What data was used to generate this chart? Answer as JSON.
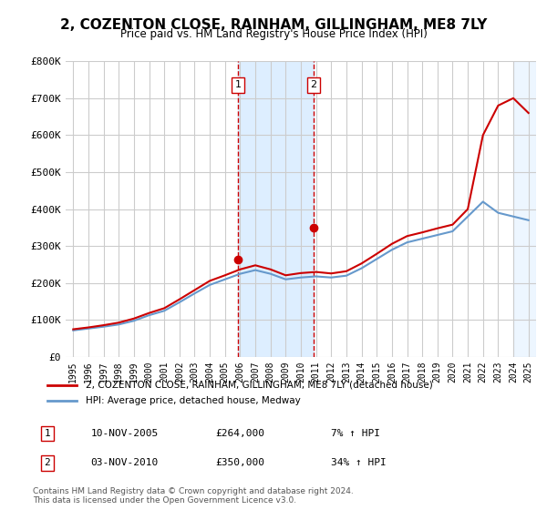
{
  "title": "2, COZENTON CLOSE, RAINHAM, GILLINGHAM, ME8 7LY",
  "subtitle": "Price paid vs. HM Land Registry's House Price Index (HPI)",
  "legend_line1": "2, COZENTON CLOSE, RAINHAM, GILLINGHAM, ME8 7LY (detached house)",
  "legend_line2": "HPI: Average price, detached house, Medway",
  "transactions": [
    {
      "id": 1,
      "date": "10-NOV-2005",
      "price": 264000,
      "pct": "7%",
      "dir": "↑"
    },
    {
      "id": 2,
      "date": "03-NOV-2010",
      "price": 350000,
      "pct": "34%",
      "dir": "↑"
    }
  ],
  "transaction_years": [
    2005.87,
    2010.84
  ],
  "transaction_prices": [
    264000,
    350000
  ],
  "footnote": "Contains HM Land Registry data © Crown copyright and database right 2024.\nThis data is licensed under the Open Government Licence v3.0.",
  "ylim": [
    0,
    800000
  ],
  "yticks": [
    0,
    100000,
    200000,
    300000,
    400000,
    500000,
    600000,
    700000,
    800000
  ],
  "ytick_labels": [
    "£0",
    "£100K",
    "£200K",
    "£300K",
    "£400K",
    "£500K",
    "£600K",
    "£700K",
    "£800K"
  ],
  "red_color": "#cc0000",
  "blue_color": "#6699cc",
  "shade_color": "#ddeeff",
  "background_color": "#ffffff",
  "grid_color": "#cccccc",
  "hpi_years": [
    1995,
    1996,
    1997,
    1998,
    1999,
    2000,
    2001,
    2002,
    2003,
    2004,
    2005,
    2006,
    2007,
    2008,
    2009,
    2010,
    2011,
    2012,
    2013,
    2014,
    2015,
    2016,
    2017,
    2018,
    2019,
    2020,
    2021,
    2022,
    2023,
    2024,
    2025
  ],
  "hpi_values": [
    72000,
    77000,
    82000,
    88000,
    98000,
    113000,
    125000,
    148000,
    172000,
    195000,
    210000,
    225000,
    235000,
    225000,
    210000,
    215000,
    218000,
    215000,
    220000,
    240000,
    265000,
    290000,
    310000,
    320000,
    330000,
    340000,
    380000,
    420000,
    390000,
    380000,
    370000
  ],
  "price_years": [
    1995,
    1996,
    1997,
    1998,
    1999,
    2000,
    2001,
    2002,
    2003,
    2004,
    2005,
    2006,
    2007,
    2008,
    2009,
    2010,
    2011,
    2012,
    2013,
    2014,
    2015,
    2016,
    2017,
    2018,
    2019,
    2020,
    2021,
    2022,
    2023,
    2024,
    2025
  ],
  "price_values": [
    75000,
    80000,
    86000,
    93000,
    104000,
    119000,
    132000,
    156000,
    181000,
    206000,
    221000,
    237000,
    248000,
    237000,
    221000,
    227000,
    230000,
    226000,
    232000,
    253000,
    279000,
    306000,
    327000,
    337000,
    348000,
    358000,
    400000,
    600000,
    680000,
    700000,
    660000
  ],
  "xlim_min": 1994.5,
  "xlim_max": 2025.5,
  "xticks": [
    1995,
    1996,
    1997,
    1998,
    1999,
    2000,
    2001,
    2002,
    2003,
    2004,
    2005,
    2006,
    2007,
    2008,
    2009,
    2010,
    2011,
    2012,
    2013,
    2014,
    2015,
    2016,
    2017,
    2018,
    2019,
    2020,
    2021,
    2022,
    2023,
    2024,
    2025
  ]
}
